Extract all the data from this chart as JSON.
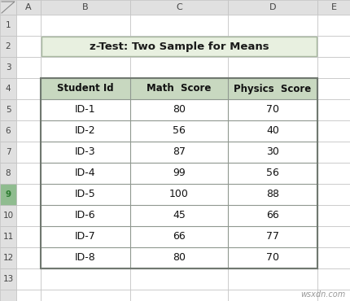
{
  "title": "z-Test: Two Sample for Means",
  "title_bg": "#e8f0e0",
  "title_border": "#a8b8a0",
  "col_headers": [
    "Student Id",
    "Math  Score",
    "Physics  Score"
  ],
  "header_row_color": "#c8d8c0",
  "rows": [
    [
      "ID-1",
      "80",
      "70"
    ],
    [
      "ID-2",
      "56",
      "40"
    ],
    [
      "ID-3",
      "87",
      "30"
    ],
    [
      "ID-4",
      "99",
      "56"
    ],
    [
      "ID-5",
      "100",
      "88"
    ],
    [
      "ID-6",
      "45",
      "66"
    ],
    [
      "ID-7",
      "66",
      "77"
    ],
    [
      "ID-8",
      "80",
      "70"
    ]
  ],
  "spreadsheet_bg": "#f2f2f2",
  "header_bg": "#e0e0e0",
  "cell_bg": "#ffffff",
  "grid_color": "#c0c0c0",
  "row_numbers": [
    "1",
    "2",
    "3",
    "4",
    "5",
    "6",
    "7",
    "8",
    "9",
    "10",
    "11",
    "12",
    "13"
  ],
  "col_letters": [
    "A",
    "B",
    "C",
    "D",
    "E"
  ],
  "watermark": "wsxdn.com",
  "row9_gutter_color": "#8fbc8f",
  "row9_num_color": "#2e7d32"
}
